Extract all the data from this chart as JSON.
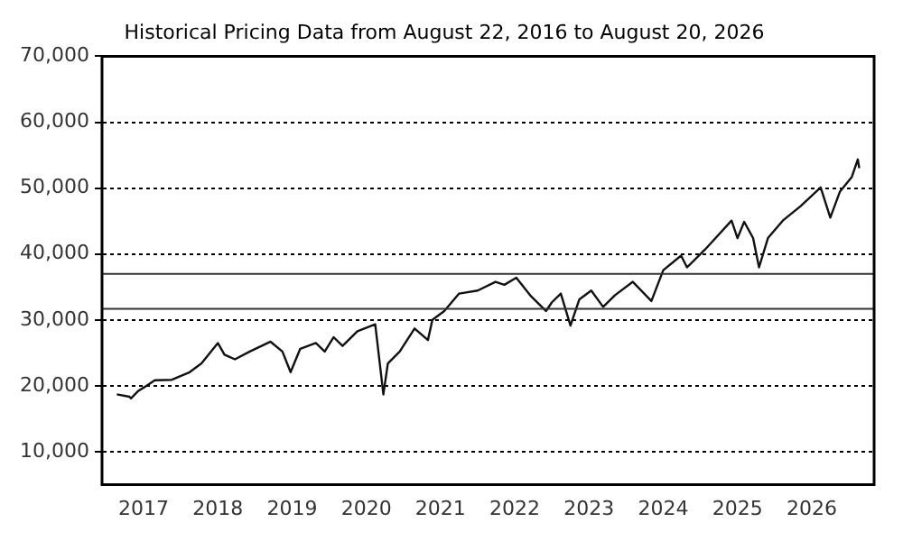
{
  "chart_data": {
    "type": "line",
    "title": "Historical Pricing Data from August 22, 2016 to August 20, 2026",
    "x": [
      2016.64,
      2016.81,
      2016.83,
      2016.93,
      2017.02,
      2017.15,
      2017.38,
      2017.62,
      2017.78,
      2018.0,
      2018.09,
      2018.23,
      2018.43,
      2018.71,
      2018.87,
      2018.98,
      2019.11,
      2019.32,
      2019.44,
      2019.56,
      2019.68,
      2019.88,
      2020.12,
      2020.23,
      2020.29,
      2020.45,
      2020.65,
      2020.83,
      2020.89,
      2021.05,
      2021.25,
      2021.5,
      2021.74,
      2021.86,
      2022.02,
      2022.22,
      2022.42,
      2022.5,
      2022.62,
      2022.75,
      2022.87,
      2023.03,
      2023.19,
      2023.35,
      2023.59,
      2023.84,
      2024.0,
      2024.24,
      2024.32,
      2024.56,
      2024.92,
      2025.0,
      2025.09,
      2025.21,
      2025.29,
      2025.41,
      2025.61,
      2025.85,
      2026.12,
      2026.25,
      2026.38,
      2026.54,
      2026.62,
      2026.64
    ],
    "series": [
      {
        "color": "#111111",
        "values": [
          18700,
          18350,
          18100,
          19250,
          19870,
          20840,
          20920,
          22070,
          23400,
          26500,
          24720,
          24030,
          25200,
          26700,
          25200,
          22070,
          25630,
          26500,
          25200,
          27380,
          26050,
          28270,
          29330,
          18700,
          23400,
          25200,
          28700,
          26950,
          30000,
          31350,
          34000,
          34450,
          35780,
          35330,
          36400,
          33580,
          31350,
          32680,
          34000,
          29150,
          33130,
          34450,
          31980,
          33750,
          35780,
          32860,
          37560,
          39760,
          37980,
          40650,
          45070,
          42420,
          44880,
          42420,
          37980,
          42420,
          45070,
          47270,
          50100,
          45520,
          49480,
          51700,
          54350,
          53020
        ]
      }
    ],
    "xlim": [
      2016.44,
      2026.84
    ],
    "xticks": [
      2017,
      2018,
      2019,
      2020,
      2021,
      2022,
      2023,
      2024,
      2025,
      2026
    ],
    "ylim": [
      5000,
      70000
    ],
    "yticks": [
      {
        "value": 10000,
        "label": "10,000"
      },
      {
        "value": 20000,
        "label": "20,000"
      },
      {
        "value": 30000,
        "label": "30,000"
      },
      {
        "value": 40000,
        "label": "40,000"
      },
      {
        "value": 50000,
        "label": "50,000"
      },
      {
        "value": 60000,
        "label": "60,000"
      },
      {
        "value": 70000,
        "label": "70,000"
      }
    ],
    "ref_lines": [
      {
        "axis": "y",
        "value": 37000,
        "color": "#333333",
        "line_style": "solid"
      },
      {
        "axis": "y",
        "value": 31700,
        "color": "#333333",
        "line_style": "solid"
      }
    ],
    "grid": "y",
    "legend": false,
    "marker": "none",
    "line_style": "solid"
  }
}
